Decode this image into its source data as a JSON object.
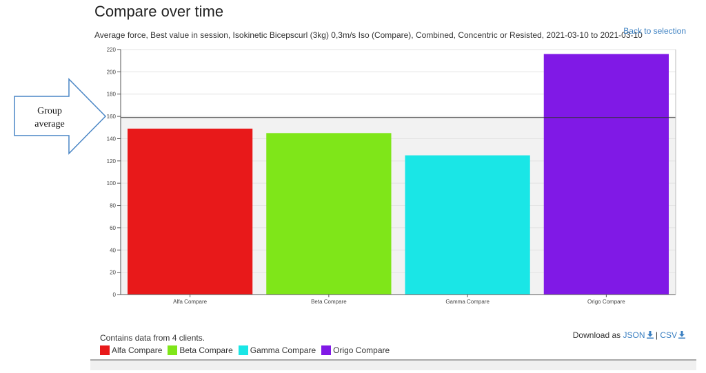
{
  "page": {
    "title": "Compare over time",
    "subtitle": "Average force, Best value in session, Isokinetic Bicepscurl (3kg) 0,3m/s Iso (Compare), Combined, Concentric or Resisted, 2021-03-10 to 2021-03-10",
    "back_link": "Back to selection"
  },
  "callout": {
    "line1": "Group",
    "line2": "average",
    "icon": "right-arrow-icon"
  },
  "footer": {
    "clients_note": "Contains data from 4 clients.",
    "download_prefix": "Download as",
    "json_label": "JSON",
    "separator": "|",
    "csv_label": "CSV",
    "download_icon": "download-icon"
  },
  "chart_data": {
    "type": "bar",
    "categories": [
      "Alfa Compare",
      "Beta Compare",
      "Gamma Compare",
      "Origo Compare"
    ],
    "values": [
      149,
      145,
      125,
      216
    ],
    "colors": [
      "#e8191a",
      "#7fe619",
      "#1ae6e6",
      "#8019e6"
    ],
    "ylim": [
      0,
      220
    ],
    "yticks": [
      0,
      20,
      40,
      60,
      80,
      100,
      120,
      140,
      160,
      180,
      200,
      220
    ],
    "group_average": 159,
    "grid": true,
    "legend": "bottom-left"
  }
}
